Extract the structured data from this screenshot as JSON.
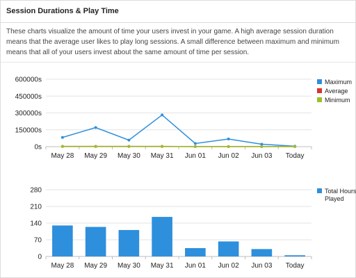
{
  "panel": {
    "title": "Session Durations & Play Time",
    "description": "These charts visualize the amount of time your users invest in your game. A high average session duration means that the average user likes to play long sessions. A small difference between maximum and minimum means that all of your users invest about the same amount of time per session."
  },
  "chart_data": [
    {
      "type": "line",
      "categories": [
        "May 28",
        "May 29",
        "May 30",
        "May 31",
        "Jun 01",
        "Jun 02",
        "Jun 03",
        "Today"
      ],
      "series": [
        {
          "name": "Maximum",
          "color": "#2e8fdc",
          "values": [
            82000,
            170000,
            58000,
            282000,
            28000,
            68000,
            22000,
            4000
          ]
        },
        {
          "name": "Average",
          "color": "#d9342b",
          "values": [
            2000,
            2000,
            2000,
            2000,
            1000,
            1000,
            1000,
            500
          ]
        },
        {
          "name": "Minimum",
          "color": "#9bbf2a",
          "values": [
            500,
            500,
            500,
            500,
            500,
            500,
            500,
            500
          ]
        }
      ],
      "yticks": [
        "0s",
        "150000s",
        "300000s",
        "450000s",
        "600000s"
      ],
      "ylim": [
        0,
        600000
      ],
      "grid": true,
      "legend": "right"
    },
    {
      "type": "bar",
      "categories": [
        "May 28",
        "May 29",
        "May 30",
        "May 31",
        "Jun 01",
        "Jun 02",
        "Jun 03",
        "Today"
      ],
      "series": [
        {
          "name": "Total Hours Played",
          "color": "#2e8fdc",
          "values": [
            130,
            124,
            111,
            166,
            35,
            63,
            31,
            5
          ]
        }
      ],
      "yticks": [
        "0",
        "70",
        "140",
        "210",
        "280"
      ],
      "ylim": [
        0,
        280
      ],
      "grid": true,
      "legend": "right"
    }
  ]
}
